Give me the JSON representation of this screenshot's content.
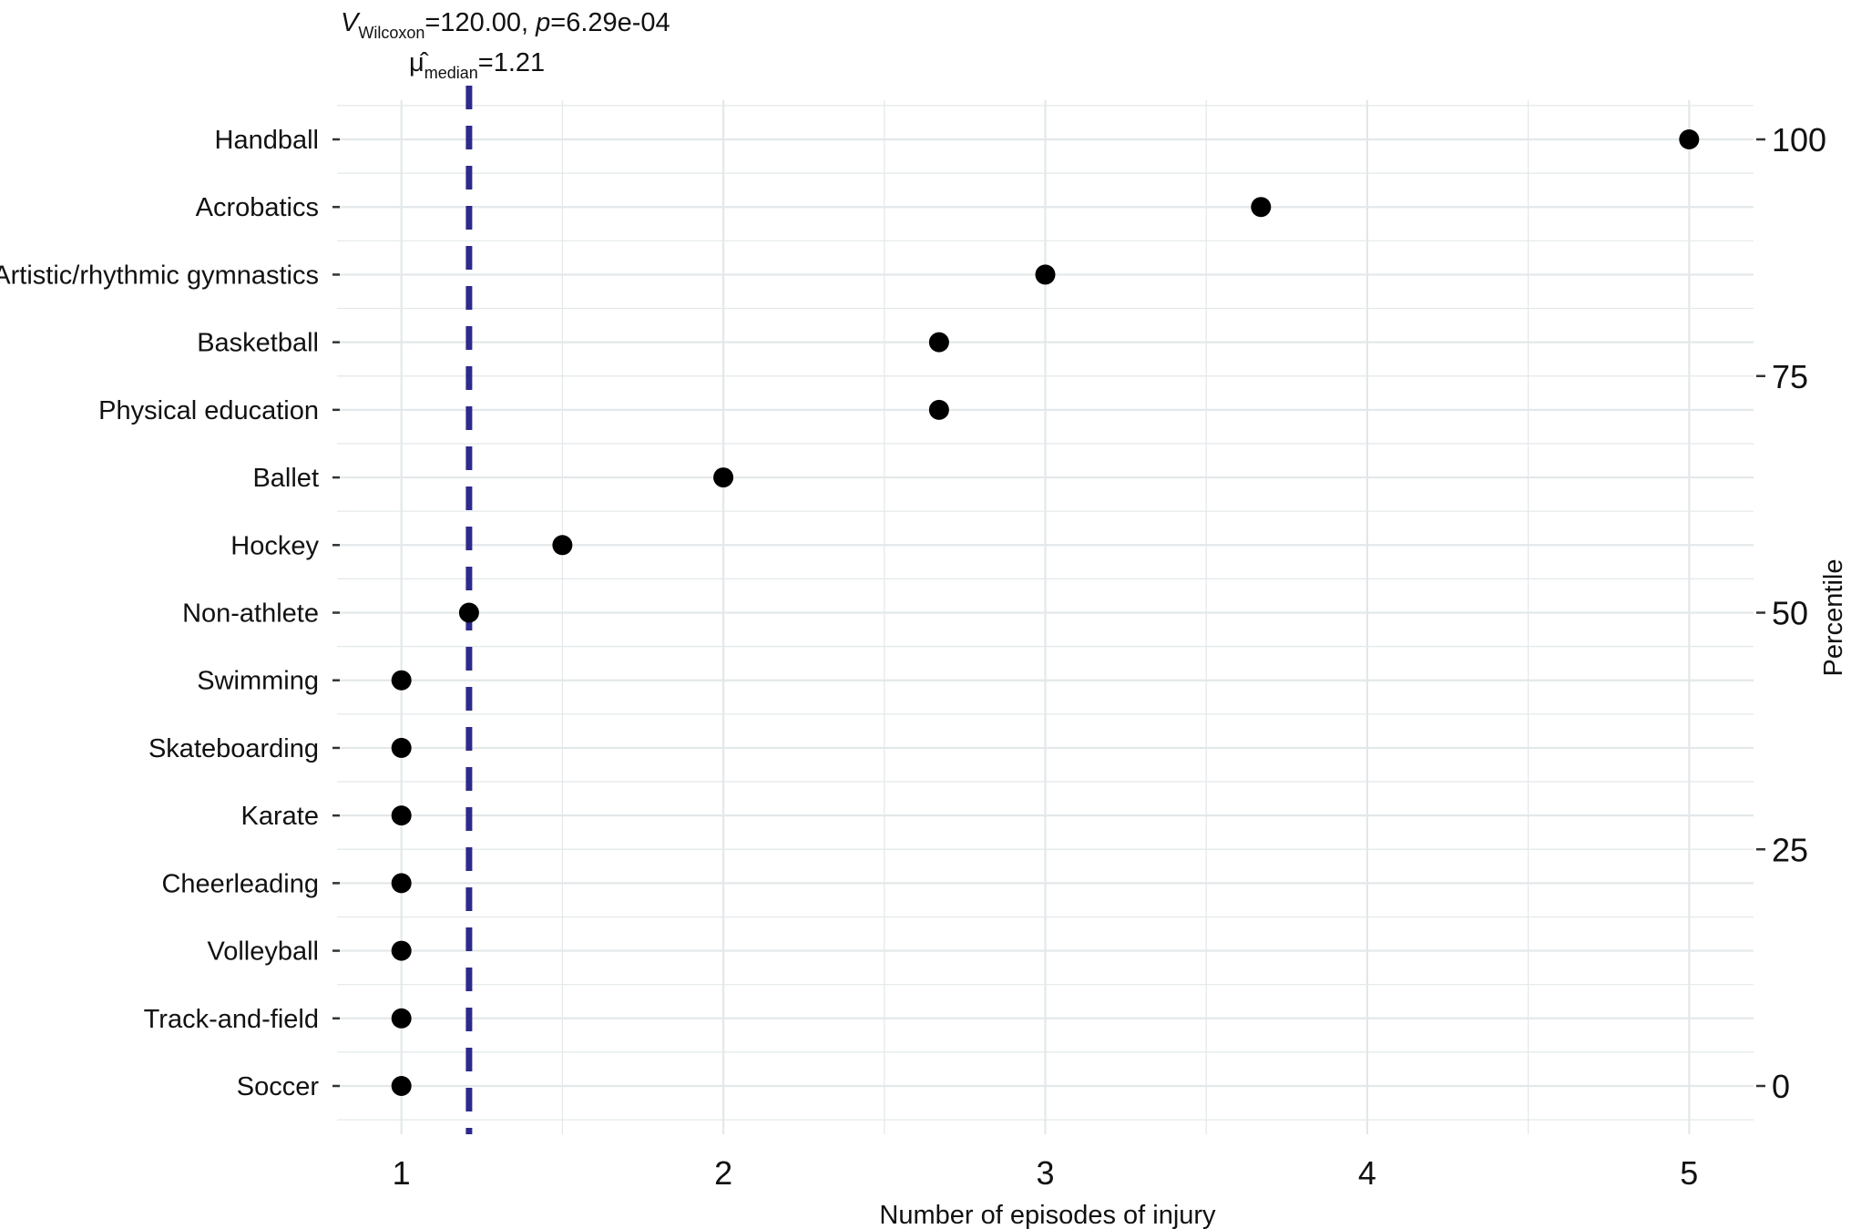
{
  "chart_data": {
    "type": "scatter",
    "categories": [
      "Handball",
      "Acrobatics",
      "Artistic/rhythmic gymnastics",
      "Basketball",
      "Physical education",
      "Ballet",
      "Hockey",
      "Non-athlete",
      "Swimming",
      "Skateboarding",
      "Karate",
      "Cheerleading",
      "Volleyball",
      "Track-and-field",
      "Soccer"
    ],
    "values": [
      5,
      3.67,
      3,
      2.67,
      2.67,
      2,
      1.5,
      1.21,
      1,
      1,
      1,
      1,
      1,
      1,
      1
    ],
    "xlabel": "Number of episodes of injury",
    "ylabel_right": "Percentile",
    "xlim": [
      0.8,
      5.2
    ],
    "xticks": [
      "1",
      "2",
      "3",
      "4",
      "5"
    ],
    "right_ticks": [
      "100",
      "75",
      "50",
      "25",
      "0"
    ],
    "right_tick_values": [
      100,
      75,
      50,
      25,
      0
    ],
    "median_line": 1.21,
    "grid": true,
    "annotation": {
      "v_symbol": "V",
      "v_sub": "Wilcoxon",
      "v_rest": "=120.00, ",
      "p_symbol": "p",
      "p_rest": "=6.29e-04",
      "mu_symbol": "μ̂",
      "mu_sub": "median",
      "mu_rest": "=1.21"
    },
    "colors": {
      "points": "#000000",
      "median_line": "#2E2A8C",
      "grid": "#E3E8EA"
    }
  }
}
